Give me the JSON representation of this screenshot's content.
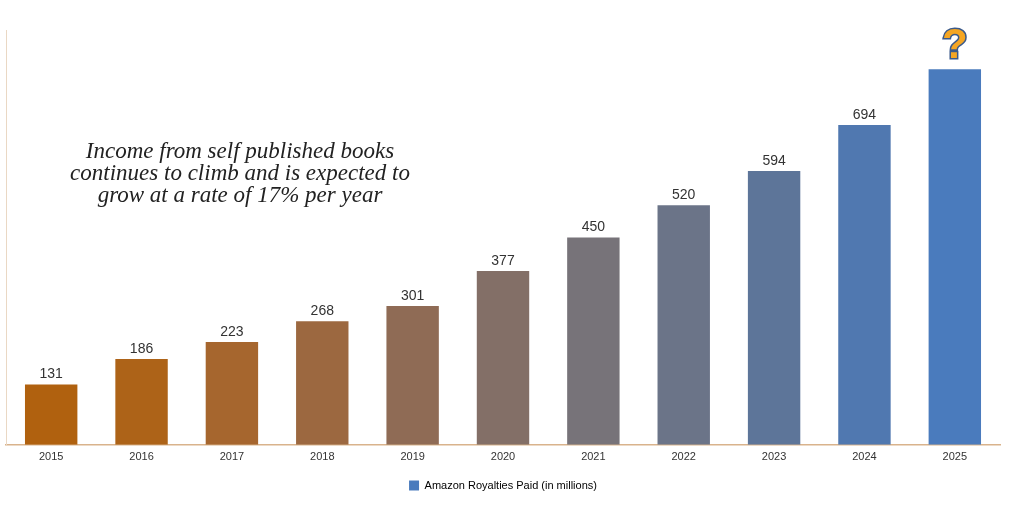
{
  "chart_data": {
    "type": "bar",
    "annotation": [
      "Income from self published books",
      "continues to climb and is expected to",
      "grow at a rate of 17% per year"
    ],
    "categories": [
      "2015",
      "2016",
      "2017",
      "2018",
      "2019",
      "2020",
      "2021",
      "2022",
      "2023",
      "2024",
      "2025"
    ],
    "series": [
      {
        "name": "Amazon Royalties Paid (in millions)",
        "color": "#4a7bbd",
        "colors": [
          "#b0610f",
          "#ad6318",
          "#a6662e",
          "#9c6840",
          "#8f6b55",
          "#836f67",
          "#777379",
          "#6b7488",
          "#5d7599",
          "#5078b0",
          "#4a7bbd"
        ],
        "values": [
          131,
          186,
          223,
          268,
          301,
          377,
          450,
          520,
          594,
          694,
          815
        ],
        "value_labels": [
          "131",
          "186",
          "223",
          "268",
          "301",
          "377",
          "450",
          "520",
          "594",
          "694",
          "?"
        ]
      }
    ],
    "ylim": [
      0,
      900
    ],
    "grid": false,
    "legend": "bottom",
    "data_labels": true,
    "tick_labels": "x"
  }
}
